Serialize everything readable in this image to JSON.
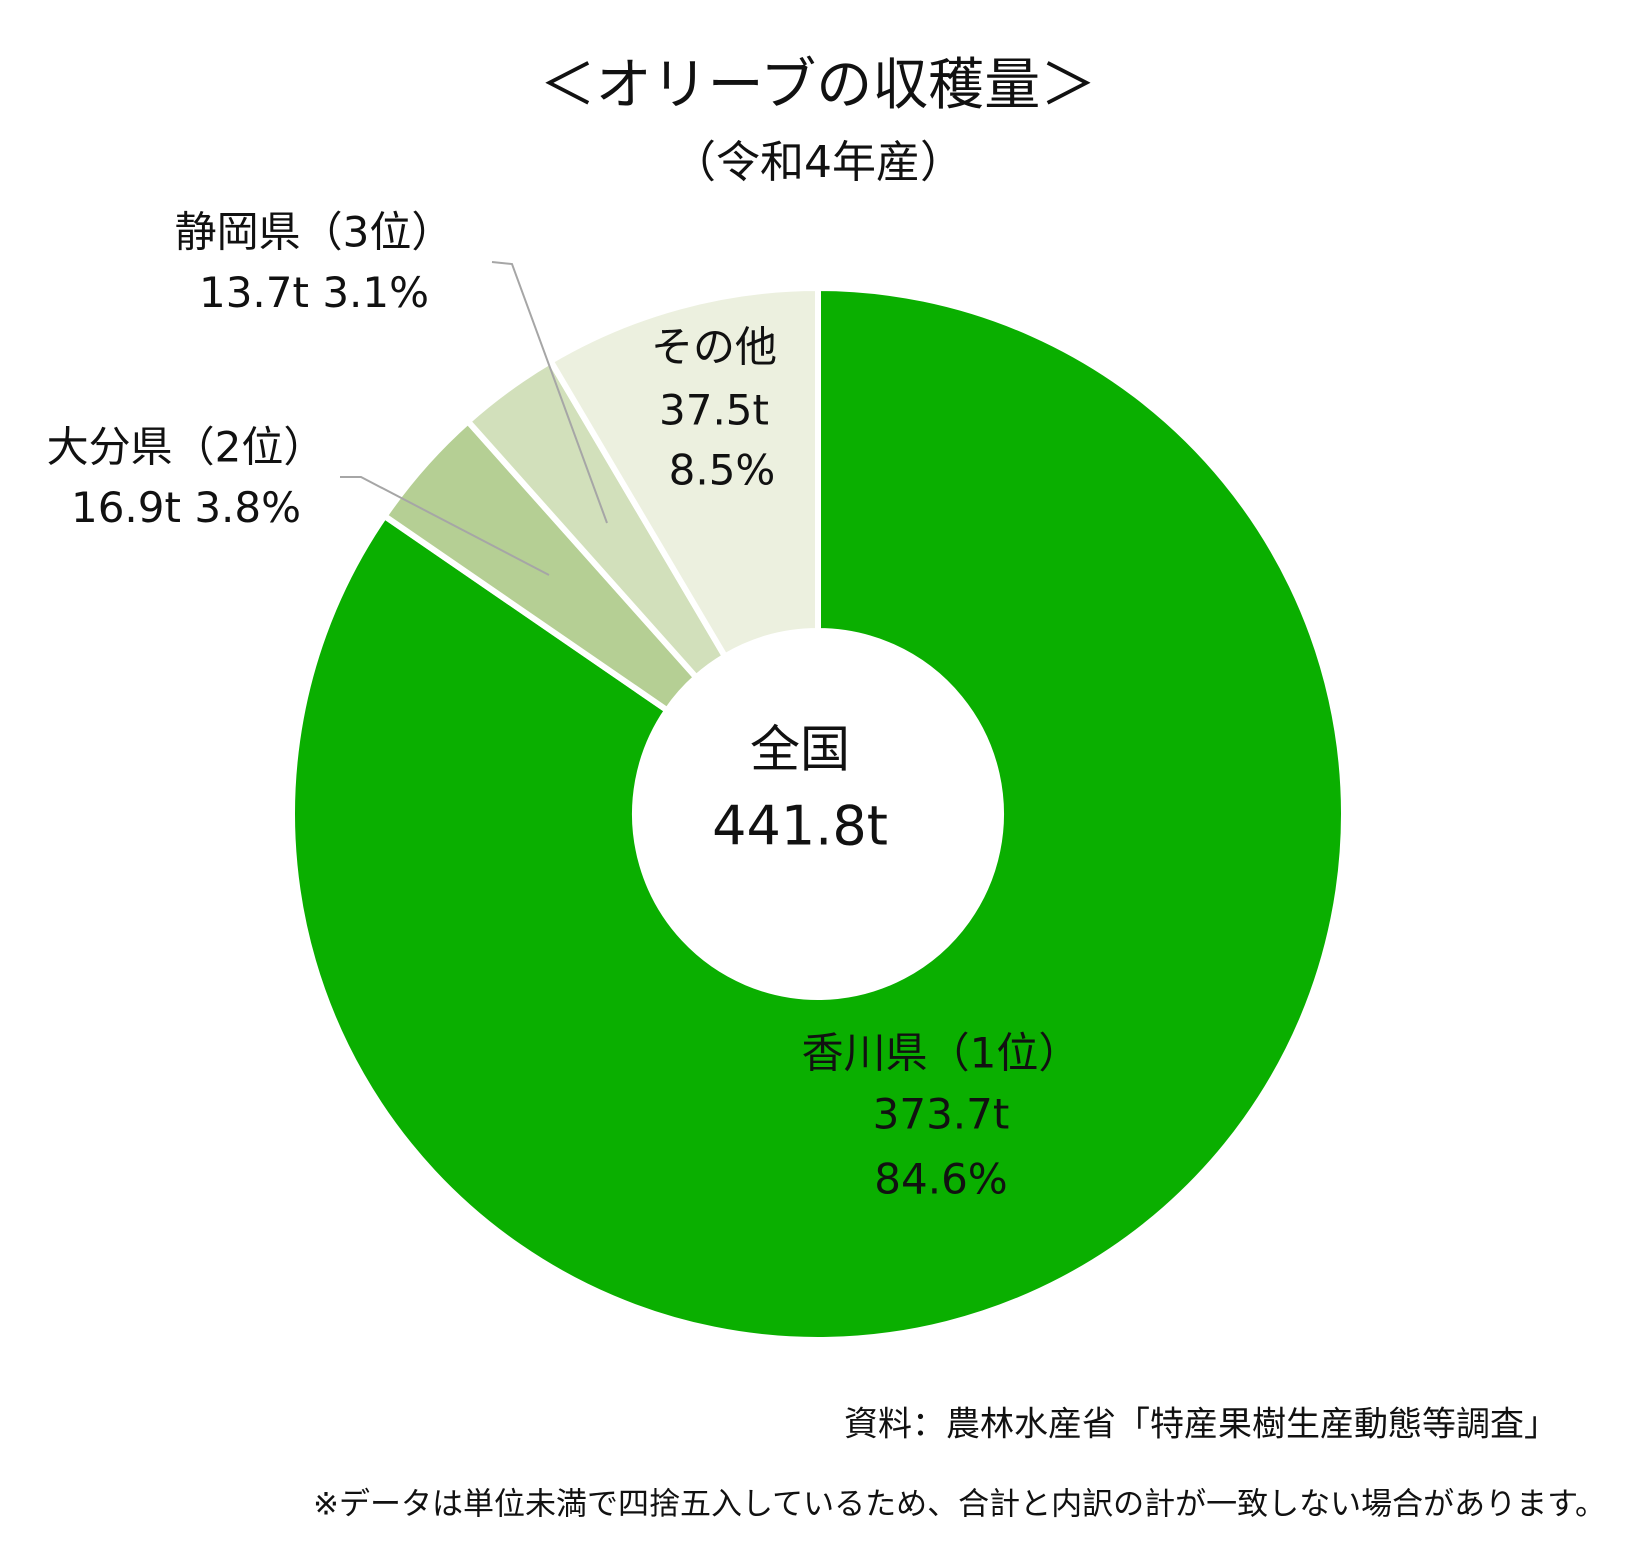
{
  "chart_data": {
    "type": "donut",
    "title": "＜オリーブの収穫量＞",
    "subtitle": "（令和4年産）",
    "categories": [
      "香川県（1位）",
      "大分県（2位）",
      "静岡県（3位）",
      "その他"
    ],
    "values": [
      373.7,
      16.9,
      13.7,
      37.5
    ],
    "value_labels": [
      "373.7t",
      "16.9t",
      "13.7t",
      "37.5t"
    ],
    "percents": [
      84.6,
      3.8,
      3.1,
      8.5
    ],
    "percent_labels": [
      "84.6%",
      "3.8%",
      "3.1%",
      "8.5%"
    ],
    "colors": [
      "#0aaf00",
      "#b5cf94",
      "#d2e0bb",
      "#ecf0df"
    ],
    "center_title": "全国",
    "total": 441.8,
    "total_label": "441.8t",
    "source": "資料：農林水産省「特産果樹生産動態等調査」",
    "note": "※データは単位未満で四捨五入しているため、合計と内訳の計が一致しない場合があります。"
  }
}
